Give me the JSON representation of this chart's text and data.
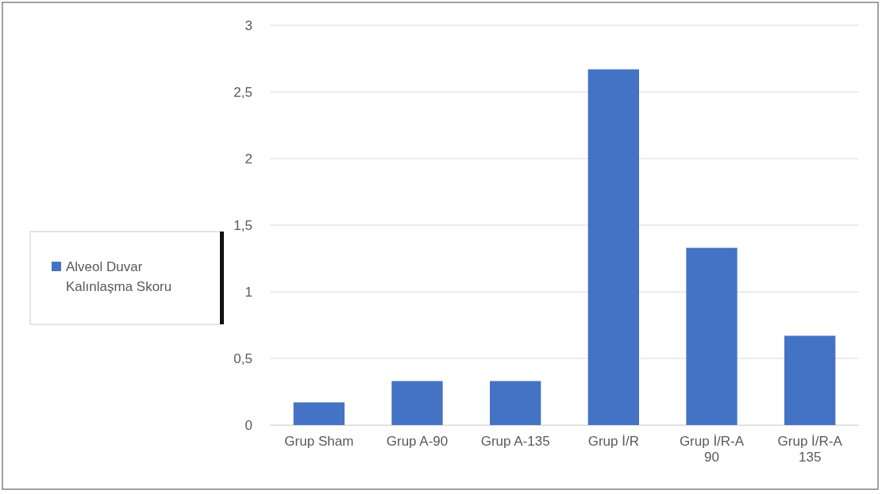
{
  "chart_data": {
    "type": "bar",
    "categories": [
      "Grup Sham",
      "Grup A-90",
      "Grup A-135",
      "Grup İ/R",
      "Grup İ/R-A 90",
      "Grup İ/R-A 135"
    ],
    "series": [
      {
        "name": "Alveol Duvar Kalınlaşma Skoru",
        "color": "#4472c4",
        "values": [
          0.17,
          0.33,
          0.33,
          2.67,
          1.33,
          0.67
        ]
      }
    ],
    "ylim": [
      0,
      3
    ],
    "yticks": [
      0,
      {
        "value": 0.5,
        "label": "0,5"
      },
      1,
      {
        "value": 1.5,
        "label": "1,5"
      },
      2,
      {
        "value": 2.5,
        "label": "2,5"
      },
      3
    ],
    "grid": "y",
    "legend": "left"
  }
}
